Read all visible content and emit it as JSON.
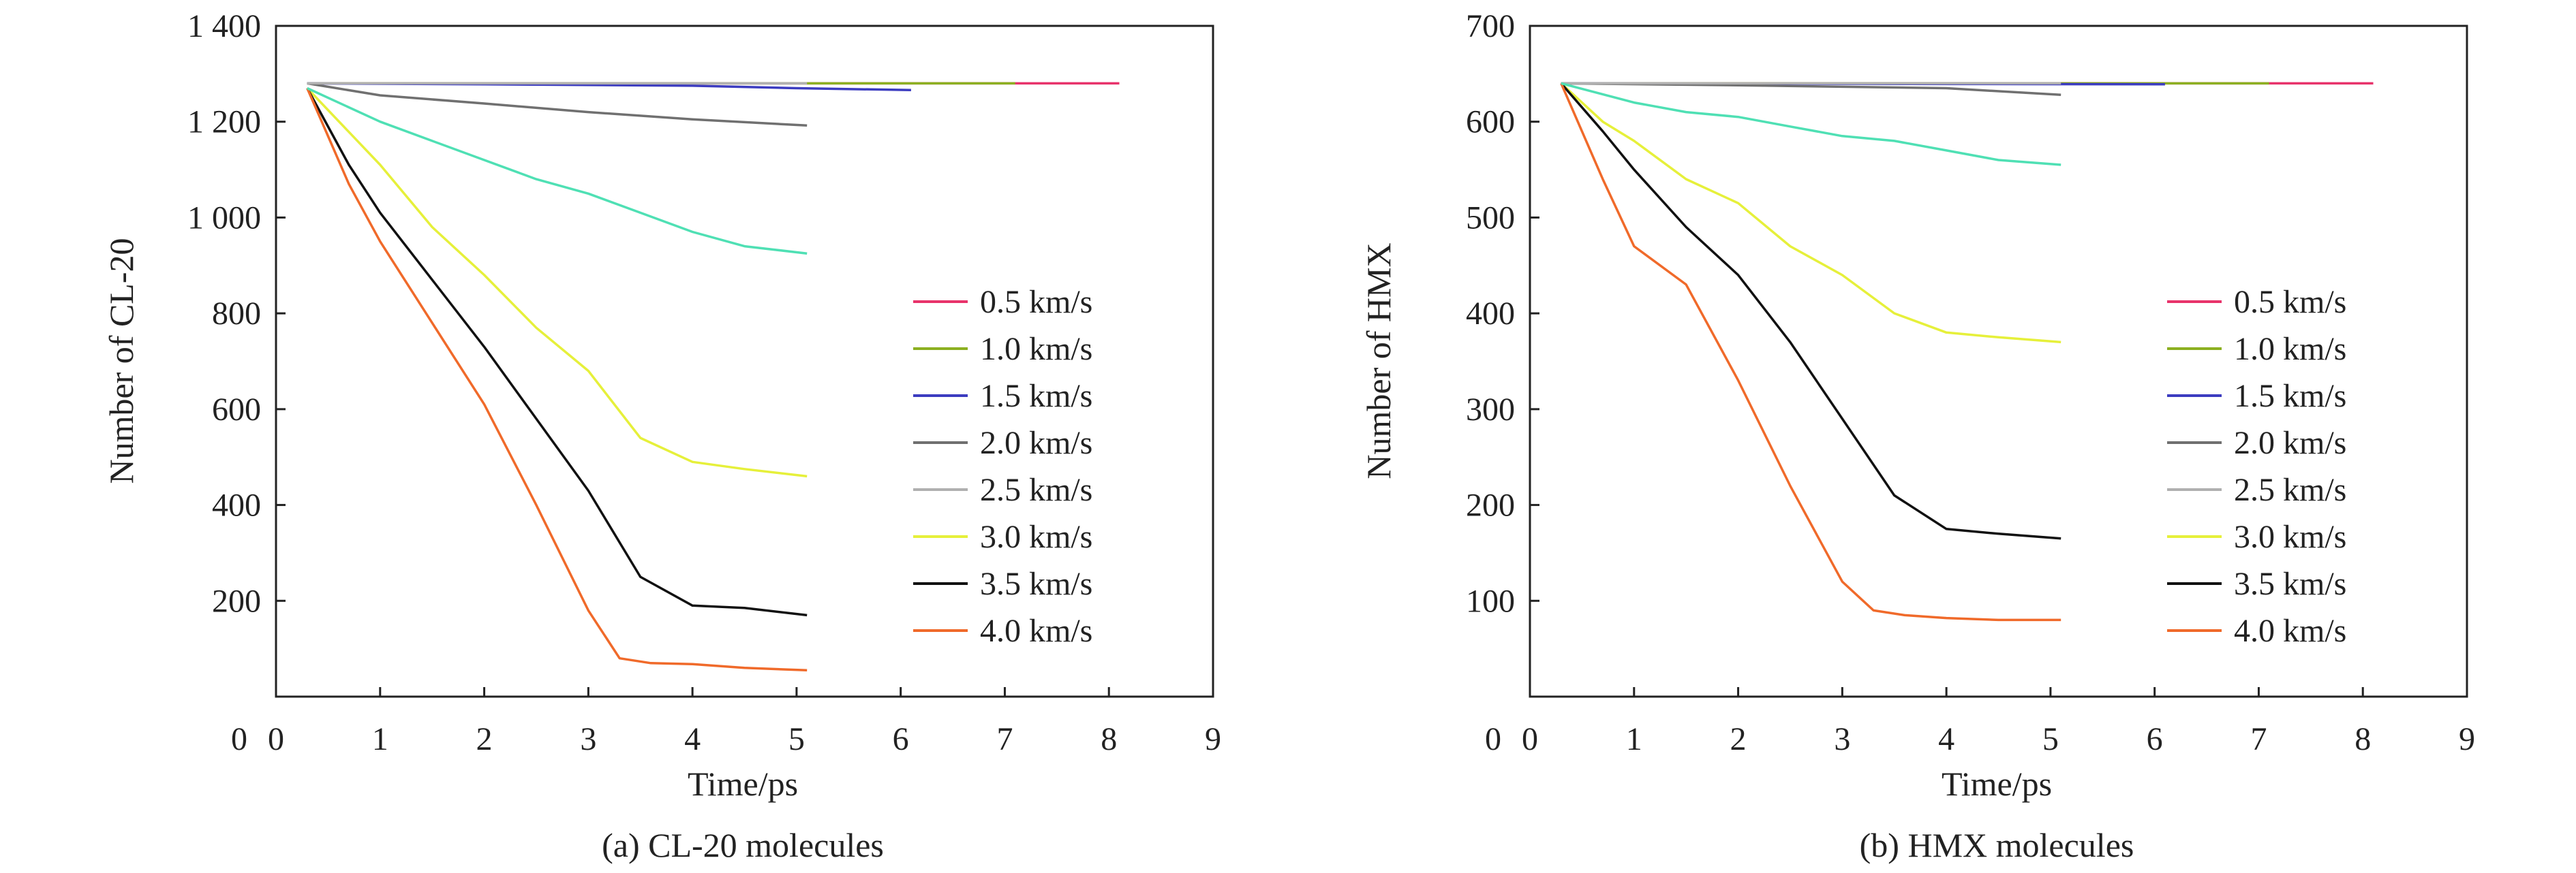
{
  "charts": [
    {
      "caption": "(a)  CL-20 molecules",
      "chart_data": {
        "type": "line",
        "xlabel": "Time/ps",
        "ylabel": "Number of CL-20",
        "xlim": [
          0,
          9
        ],
        "ylim": [
          0,
          1400
        ],
        "x_ticks": [
          {
            "value": 0,
            "label": "0"
          },
          {
            "value": 1,
            "label": "1"
          },
          {
            "value": 2,
            "label": "2"
          },
          {
            "value": 3,
            "label": "3"
          },
          {
            "value": 4,
            "label": "4"
          },
          {
            "value": 5,
            "label": "5"
          },
          {
            "value": 6,
            "label": "6"
          },
          {
            "value": 7,
            "label": "7"
          },
          {
            "value": 8,
            "label": "8"
          },
          {
            "value": 9,
            "label": "9"
          }
        ],
        "y_ticks": [
          {
            "value": 200,
            "label": "200"
          },
          {
            "value": 400,
            "label": "400"
          },
          {
            "value": 600,
            "label": "600"
          },
          {
            "value": 800,
            "label": "800"
          },
          {
            "value": 1000,
            "label": "1 000"
          },
          {
            "value": 1200,
            "label": "1 200"
          },
          {
            "value": 1400,
            "label": "1 400"
          }
        ],
        "legend_position": "right",
        "series": [
          {
            "name": "0.5 km/s",
            "color": "#e8336b",
            "x": [
              0.3,
              8.1
            ],
            "y": [
              1280,
              1280
            ]
          },
          {
            "name": "1.0 km/s",
            "color": "#8cb021",
            "x": [
              0.3,
              7.1
            ],
            "y": [
              1280,
              1280
            ]
          },
          {
            "name": "1.5 km/s",
            "color": "#3c3cc0",
            "x": [
              0.3,
              2,
              4,
              5,
              6.1
            ],
            "y": [
              1280,
              1278,
              1275,
              1270,
              1266
            ]
          },
          {
            "name": "2.0 km/s",
            "color": "#707070",
            "x": [
              0.3,
              1,
              2,
              3,
              4,
              5.1
            ],
            "y": [
              1280,
              1255,
              1238,
              1220,
              1205,
              1192
            ]
          },
          {
            "name": "2.5 km/s",
            "color": "#b0b0b0",
            "x": [
              0.3,
              5.1
            ],
            "y": [
              1280,
              1280
            ]
          },
          {
            "name": "3.0 km/s",
            "color": "#e6f03a",
            "x": [
              0.3,
              1,
              1.5,
              2,
              2.5,
              3,
              3.5,
              4,
              4.5,
              5.1
            ],
            "y": [
              1270,
              1110,
              980,
              880,
              770,
              680,
              540,
              490,
              475,
              460
            ]
          },
          {
            "name": "3.5 km/s",
            "color": "#111111",
            "x": [
              0.3,
              0.7,
              1,
              1.5,
              2,
              2.5,
              3,
              3.5,
              4,
              4.5,
              5.1
            ],
            "y": [
              1270,
              1110,
              1010,
              870,
              730,
              580,
              430,
              250,
              190,
              185,
              170
            ]
          },
          {
            "name": "4.0 km/s",
            "color": "#f06a2a",
            "x": [
              0.3,
              0.7,
              1,
              1.5,
              2,
              2.5,
              3,
              3.3,
              3.6,
              4,
              4.5,
              5.1
            ],
            "y": [
              1270,
              1070,
              950,
              780,
              610,
              400,
              180,
              80,
              70,
              68,
              60,
              55
            ]
          },
          {
            "name": "",
            "color": "#4fe0b4",
            "x": [
              0.3,
              1,
              1.5,
              2,
              2.5,
              3,
              3.5,
              4,
              4.5,
              5.1
            ],
            "y": [
              1270,
              1200,
              1160,
              1120,
              1080,
              1050,
              1010,
              970,
              940,
              925
            ]
          }
        ]
      }
    },
    {
      "caption": "(b) HMX molecules",
      "chart_data": {
        "type": "line",
        "xlabel": "Time/ps",
        "ylabel": "Number of HMX",
        "xlim": [
          0,
          9
        ],
        "ylim": [
          0,
          700
        ],
        "x_ticks": [
          {
            "value": 0,
            "label": "0"
          },
          {
            "value": 1,
            "label": "1"
          },
          {
            "value": 2,
            "label": "2"
          },
          {
            "value": 3,
            "label": "3"
          },
          {
            "value": 4,
            "label": "4"
          },
          {
            "value": 5,
            "label": "5"
          },
          {
            "value": 6,
            "label": "6"
          },
          {
            "value": 7,
            "label": "7"
          },
          {
            "value": 8,
            "label": "8"
          },
          {
            "value": 9,
            "label": "9"
          }
        ],
        "y_ticks": [
          {
            "value": 100,
            "label": "100"
          },
          {
            "value": 200,
            "label": "200"
          },
          {
            "value": 300,
            "label": "300"
          },
          {
            "value": 400,
            "label": "400"
          },
          {
            "value": 500,
            "label": "500"
          },
          {
            "value": 600,
            "label": "600"
          },
          {
            "value": 700,
            "label": "700"
          }
        ],
        "legend_position": "right",
        "series": [
          {
            "name": "0.5 km/s",
            "color": "#e8336b",
            "x": [
              0.3,
              8.1
            ],
            "y": [
              640,
              640
            ]
          },
          {
            "name": "1.0 km/s",
            "color": "#8cb021",
            "x": [
              0.3,
              7.1
            ],
            "y": [
              640,
              640
            ]
          },
          {
            "name": "1.5 km/s",
            "color": "#3c3cc0",
            "x": [
              0.3,
              6.1
            ],
            "y": [
              640,
              639
            ]
          },
          {
            "name": "2.0 km/s",
            "color": "#707070",
            "x": [
              0.3,
              2,
              4,
              5.1
            ],
            "y": [
              640,
              638,
              635,
              628
            ]
          },
          {
            "name": "2.5 km/s",
            "color": "#b0b0b0",
            "x": [
              0.3,
              5.1
            ],
            "y": [
              640,
              640
            ]
          },
          {
            "name": "3.0 km/s",
            "color": "#e6f03a",
            "x": [
              0.3,
              0.7,
              1,
              1.5,
              2,
              2.5,
              3,
              3.5,
              4,
              4.5,
              5.1
            ],
            "y": [
              640,
              600,
              580,
              540,
              515,
              470,
              440,
              400,
              380,
              375,
              370
            ]
          },
          {
            "name": "3.5 km/s",
            "color": "#111111",
            "x": [
              0.3,
              0.7,
              1,
              1.5,
              2,
              2.5,
              3,
              3.5,
              4,
              4.5,
              5.1
            ],
            "y": [
              640,
              590,
              550,
              490,
              440,
              370,
              290,
              210,
              175,
              170,
              165
            ]
          },
          {
            "name": "4.0 km/s",
            "color": "#f06a2a",
            "x": [
              0.3,
              0.7,
              1,
              1.5,
              2,
              2.5,
              3,
              3.3,
              3.6,
              4,
              4.5,
              5.1
            ],
            "y": [
              640,
              540,
              470,
              430,
              330,
              220,
              120,
              90,
              85,
              82,
              80,
              80
            ]
          },
          {
            "name": "",
            "color": "#4fe0b4",
            "x": [
              0.3,
              1,
              1.5,
              2,
              2.5,
              3,
              3.5,
              4,
              4.5,
              5.1
            ],
            "y": [
              640,
              620,
              610,
              605,
              595,
              585,
              580,
              570,
              560,
              555
            ]
          }
        ]
      }
    }
  ]
}
